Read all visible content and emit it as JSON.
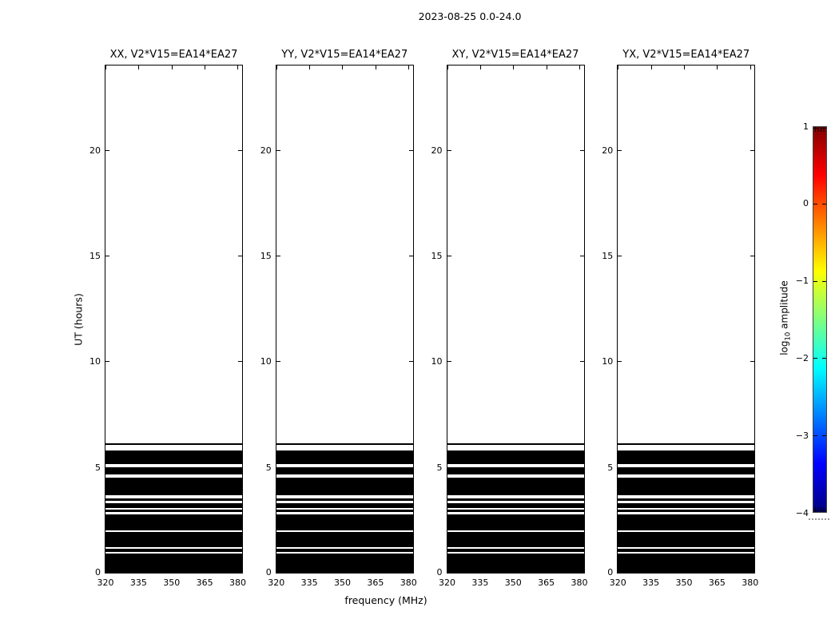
{
  "chart_data": {
    "type": "heatmap",
    "title": "2023-08-25 0.0-24.0",
    "xlabel": "frequency (MHz)",
    "ylabel": "UT (hours)",
    "x_range": [
      320,
      382
    ],
    "y_range": [
      0,
      24
    ],
    "x_ticks": [
      320,
      335,
      350,
      365,
      380
    ],
    "y_ticks": [
      0,
      5,
      10,
      15,
      20
    ],
    "grid": false,
    "panels": [
      {
        "pol": "XX",
        "title": "XX, V2*V15=EA14*EA27"
      },
      {
        "pol": "YY",
        "title": "YY, V2*V15=EA14*EA27"
      },
      {
        "pol": "XY",
        "title": "XY, V2*V15=EA14*EA27"
      },
      {
        "pol": "YX",
        "title": "YX, V2*V15=EA14*EA27"
      }
    ],
    "data_fill_color": "#000000",
    "data_time_segments_hours": [
      [
        0.0,
        0.89
      ],
      [
        0.98,
        1.13
      ],
      [
        1.21,
        1.91
      ],
      [
        2.02,
        2.77
      ],
      [
        2.87,
        2.97
      ],
      [
        3.06,
        3.27
      ],
      [
        3.39,
        3.53
      ],
      [
        3.67,
        4.49
      ],
      [
        4.66,
        5.0
      ],
      [
        5.14,
        5.8
      ],
      [
        6.03,
        6.12
      ]
    ],
    "colorbar": {
      "label_parts": [
        "log",
        "10",
        " amplitude"
      ],
      "ticks": [
        1,
        0,
        -1,
        -2,
        -3,
        -4
      ],
      "tick_labels": [
        "1",
        "0",
        "−1",
        "−2",
        "−3",
        "−4"
      ],
      "range": [
        -4,
        1
      ],
      "colormap": "jet",
      "position": "right",
      "gradient_stops": [
        {
          "pos": 0.0,
          "color": "#000080"
        },
        {
          "pos": 0.125,
          "color": "#0000ff"
        },
        {
          "pos": 0.375,
          "color": "#00ffff"
        },
        {
          "pos": 0.625,
          "color": "#ffff00"
        },
        {
          "pos": 0.875,
          "color": "#ff0000"
        },
        {
          "pos": 1.0,
          "color": "#800000"
        }
      ]
    }
  }
}
